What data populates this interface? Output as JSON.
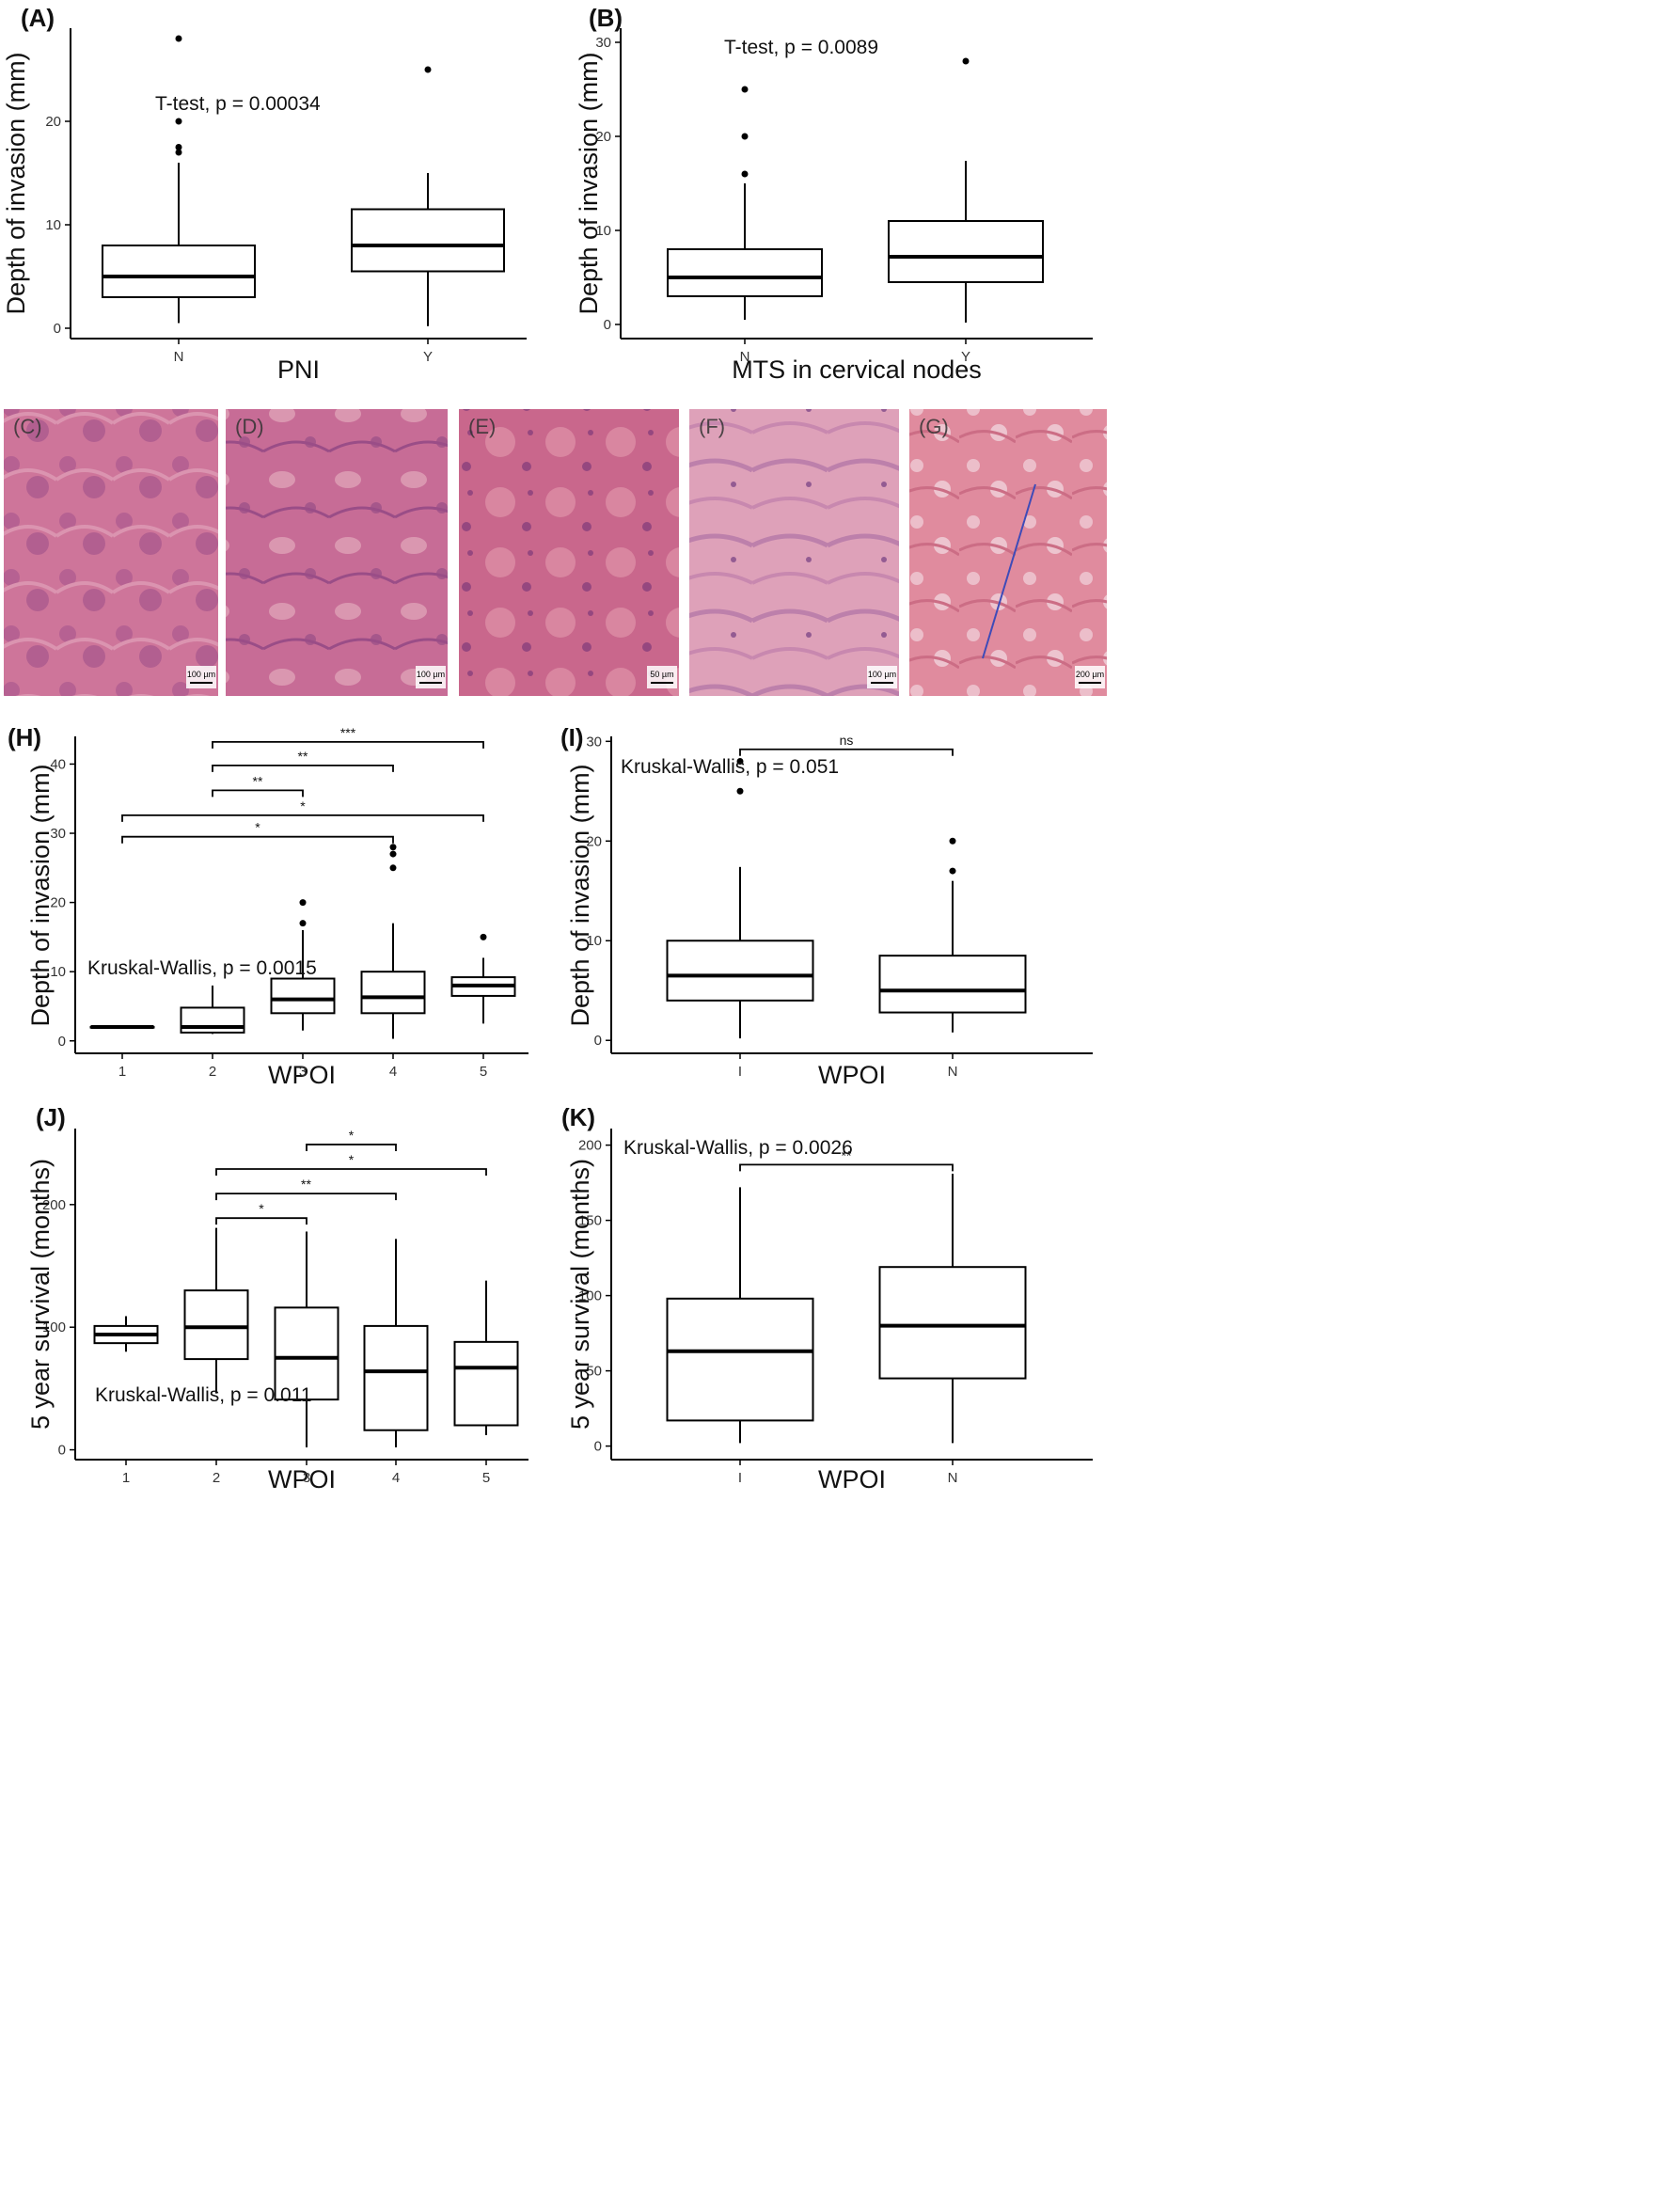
{
  "chart_data": [
    {
      "panel": "(A)",
      "type": "box",
      "xlabel": "PNI",
      "ylabel": "Depth of invasion (mm)",
      "ylim": [
        -1,
        29
      ],
      "yticks": [
        0,
        10,
        20
      ],
      "annotation": "T-test, p = 0.00034",
      "groups": [
        {
          "label": "N",
          "min": 0.5,
          "q1": 3,
          "median": 5,
          "q3": 8,
          "max": 16,
          "outliers": [
            17,
            17.5,
            20,
            28
          ]
        },
        {
          "label": "Y",
          "min": 0.2,
          "q1": 5.5,
          "median": 8,
          "q3": 11.5,
          "max": 15,
          "outliers": [
            25
          ]
        }
      ],
      "brackets": []
    },
    {
      "panel": "(B)",
      "type": "box",
      "xlabel": "MTS in cervical nodes",
      "ylabel": "Depth of invasion (mm)",
      "ylim": [
        -1.5,
        31.5
      ],
      "yticks": [
        0,
        10,
        20,
        30
      ],
      "annotation": "T-test, p = 0.0089",
      "groups": [
        {
          "label": "N",
          "min": 0.5,
          "q1": 3,
          "median": 5,
          "q3": 8,
          "max": 15,
          "outliers": [
            16,
            20,
            25
          ]
        },
        {
          "label": "Y",
          "min": 0.2,
          "q1": 4.5,
          "median": 7.2,
          "q3": 11,
          "max": 17.4,
          "outliers": [
            28
          ]
        }
      ],
      "brackets": []
    },
    {
      "panel": "(H)",
      "type": "box",
      "xlabel": "WPOI",
      "ylabel": "Depth of invasion (mm)",
      "ylim": [
        -1.8,
        44
      ],
      "yticks": [
        0,
        10,
        20,
        30,
        40
      ],
      "annotation": "Kruskal-Wallis, p = 0.0015",
      "groups": [
        {
          "label": "1",
          "min": 2,
          "q1": 2,
          "median": 2,
          "q3": 2,
          "max": 2,
          "outliers": []
        },
        {
          "label": "2",
          "min": 1,
          "q1": 1.2,
          "median": 2,
          "q3": 4.8,
          "max": 8,
          "outliers": []
        },
        {
          "label": "3",
          "min": 1.5,
          "q1": 4,
          "median": 6,
          "q3": 9,
          "max": 16,
          "outliers": [
            17,
            20
          ]
        },
        {
          "label": "4",
          "min": 0.3,
          "q1": 4,
          "median": 6.3,
          "q3": 10,
          "max": 17,
          "outliers": [
            25,
            27,
            28
          ]
        },
        {
          "label": "5",
          "min": 2.5,
          "q1": 6.5,
          "median": 8,
          "q3": 9.2,
          "max": 12,
          "outliers": [
            15
          ]
        }
      ],
      "brackets": [
        {
          "from": 1,
          "to": 4,
          "y": 29.5,
          "label": "*"
        },
        {
          "from": 1,
          "to": 5,
          "y": 32.6,
          "label": "*"
        },
        {
          "from": 2,
          "to": 3,
          "y": 36.2,
          "label": "**"
        },
        {
          "from": 2,
          "to": 4,
          "y": 39.8,
          "label": "**"
        },
        {
          "from": 2,
          "to": 5,
          "y": 43.2,
          "label": "***"
        }
      ]
    },
    {
      "panel": "(I)",
      "type": "box",
      "xlabel": "WPOI",
      "ylabel": "Depth of invasion (mm)",
      "ylim": [
        -1.3,
        30.5
      ],
      "yticks": [
        0,
        10,
        20,
        30
      ],
      "annotation": "Kruskal-Wallis, p = 0.051",
      "groups": [
        {
          "label": "I",
          "min": 0.2,
          "q1": 4,
          "median": 6.5,
          "q3": 10,
          "max": 17.4,
          "outliers": [
            25,
            28
          ]
        },
        {
          "label": "N",
          "min": 0.8,
          "q1": 2.8,
          "median": 5,
          "q3": 8.5,
          "max": 16,
          "outliers": [
            17,
            20
          ]
        }
      ],
      "brackets": [
        {
          "from": 1,
          "to": 2,
          "y": 29.2,
          "label": "ns"
        }
      ]
    },
    {
      "panel": "(J)",
      "type": "box",
      "xlabel": "WPOI",
      "ylabel": "5 year survival (months)",
      "ylim": [
        -8,
        262
      ],
      "yticks": [
        0,
        100,
        200
      ],
      "annotation": "Kruskal-Wallis, p = 0.011",
      "groups": [
        {
          "label": "1",
          "min": 80,
          "q1": 87,
          "median": 94,
          "q3": 101,
          "max": 109,
          "outliers": []
        },
        {
          "label": "2",
          "min": 46,
          "q1": 74,
          "median": 100,
          "q3": 130,
          "max": 181,
          "outliers": []
        },
        {
          "label": "3",
          "min": 2,
          "q1": 41,
          "median": 75,
          "q3": 116,
          "max": 178,
          "outliers": []
        },
        {
          "label": "4",
          "min": 2,
          "q1": 16,
          "median": 64,
          "q3": 101,
          "max": 172,
          "outliers": []
        },
        {
          "label": "5",
          "min": 12,
          "q1": 20,
          "median": 67,
          "q3": 88,
          "max": 138,
          "outliers": []
        }
      ],
      "brackets": [
        {
          "from": 2,
          "to": 3,
          "y": 189,
          "label": "*"
        },
        {
          "from": 2,
          "to": 4,
          "y": 209,
          "label": "**"
        },
        {
          "from": 2,
          "to": 5,
          "y": 229,
          "label": "*"
        },
        {
          "from": 3,
          "to": 4,
          "y": 249,
          "label": "*"
        }
      ]
    },
    {
      "panel": "(K)",
      "type": "box",
      "xlabel": "WPOI",
      "ylabel": "5 year survival (months)",
      "ylim": [
        -9,
        211
      ],
      "yticks": [
        0,
        50,
        100,
        150,
        200
      ],
      "annotation": "Kruskal-Wallis, p = 0.0026",
      "groups": [
        {
          "label": "I",
          "min": 2,
          "q1": 17,
          "median": 63,
          "q3": 98,
          "max": 172,
          "outliers": []
        },
        {
          "label": "N",
          "min": 2,
          "q1": 45,
          "median": 80,
          "q3": 119,
          "max": 181,
          "outliers": []
        }
      ],
      "brackets": [
        {
          "from": 1,
          "to": 2,
          "y": 187,
          "label": "**"
        }
      ]
    }
  ],
  "micrographs": [
    {
      "label": "(C)",
      "scale": "100 µm",
      "color": "#b35a88"
    },
    {
      "label": "(D)",
      "scale": "100 µm",
      "color": "#c26b8f"
    },
    {
      "label": "(E)",
      "scale": "50 µm",
      "color": "#b8587e"
    },
    {
      "label": "(F)",
      "scale": "100 µm",
      "color": "#cf8aa5"
    },
    {
      "label": "(G)",
      "scale": "200 µm",
      "color": "#d9869a"
    }
  ]
}
